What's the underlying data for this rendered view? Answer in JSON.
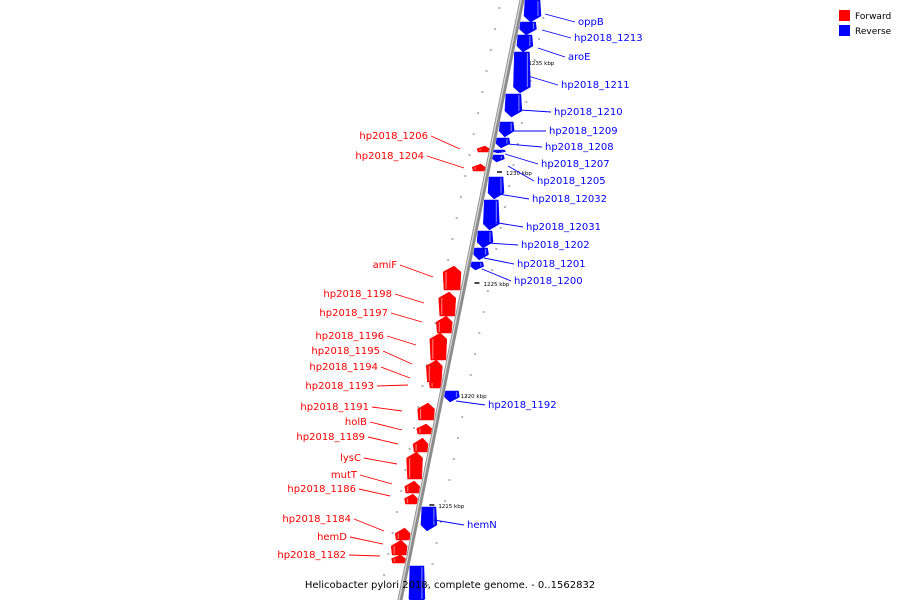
{
  "caption": "Helicobacter pylori 2018, complete genome. - 0..1562832",
  "legend": [
    {
      "label": "Forward",
      "color": "#ff0000"
    },
    {
      "label": "Reverse",
      "color": "#0000ff"
    }
  ],
  "colors": {
    "forward": "#ff0000",
    "reverse": "#0000ff",
    "backbone": "#8c8c8c"
  },
  "ticks": [
    "1235 kbp",
    "1230 kbp",
    "1225 kbp",
    "1220 kbp",
    "1215 kbp"
  ],
  "forward_genes": [
    "hp2018_1206",
    "hp2018_1204",
    "amiF",
    "hp2018_1198",
    "hp2018_1197",
    "hp2018_1196",
    "hp2018_1195",
    "hp2018_1194",
    "hp2018_1193",
    "hp2018_1191",
    "holB",
    "hp2018_1189",
    "lysC",
    "mutT",
    "hp2018_1186",
    "hp2018_1184",
    "hemD",
    "hp2018_1182"
  ],
  "reverse_genes": [
    "oppB",
    "hp2018_1213",
    "aroE",
    "hp2018_1211",
    "hp2018_1210",
    "hp2018_1209",
    "hp2018_1208",
    "hp2018_1207",
    "hp2018_1205",
    "hp2018_12032",
    "hp2018_12031",
    "hp2018_1202",
    "hp2018_1201",
    "hp2018_1200",
    "hp2018_1192",
    "hemN"
  ]
}
